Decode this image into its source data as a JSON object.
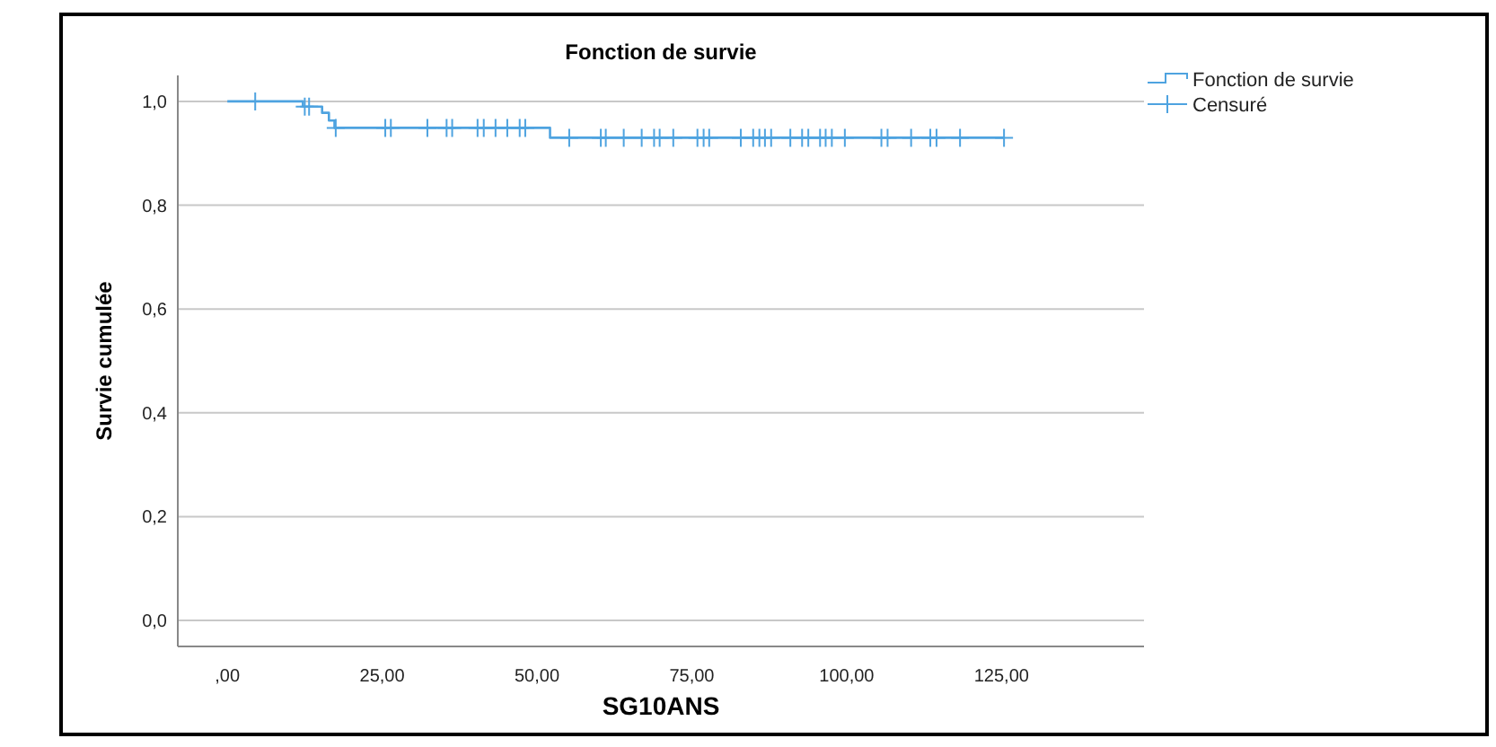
{
  "chart_data": {
    "type": "step",
    "title": "Fonction de survie",
    "xlabel": "SG10ANS",
    "ylabel": "Survie cumulée",
    "xlim": [
      -8,
      148
    ],
    "ylim": [
      -0.05,
      1.05
    ],
    "xticks": [
      {
        "value": 0,
        "label": ",00"
      },
      {
        "value": 25,
        "label": "25,00"
      },
      {
        "value": 50,
        "label": "50,00"
      },
      {
        "value": 75,
        "label": "75,00"
      },
      {
        "value": 100,
        "label": "100,00"
      },
      {
        "value": 125,
        "label": "125,00"
      }
    ],
    "yticks": [
      {
        "value": 0,
        "label": "0,0"
      },
      {
        "value": 0.2,
        "label": "0,2"
      },
      {
        "value": 0.4,
        "label": "0,4"
      },
      {
        "value": 0.6,
        "label": "0,6"
      },
      {
        "value": 0.8,
        "label": "0,8"
      },
      {
        "value": 1,
        "label": "1,0"
      }
    ],
    "grid": "y",
    "legend": "top right",
    "series": [
      {
        "name": "Fonction de survie",
        "color": "#4ea3e0",
        "marker": "none",
        "x": [
          0,
          12.2,
          15.3,
          16.4,
          17.3,
          52.1,
          125.4
        ],
        "values": [
          1,
          0.99,
          0.978,
          0.963,
          0.949,
          0.93,
          0.93
        ]
      },
      {
        "name": "Censuré",
        "type": "scatter",
        "color": "#4ea3e0",
        "marker": "cross",
        "x": [
          4.5,
          12.5,
          13.2,
          17.5,
          25.5,
          26.4,
          32.3,
          35.4,
          36.3,
          40.4,
          41.4,
          43.3,
          45.2,
          47.2,
          48.1,
          55.2,
          60.3,
          61.1,
          64,
          66.9,
          68.9,
          69.8,
          72,
          75.9,
          76.9,
          77.8,
          82.9,
          84.9,
          85.9,
          86.8,
          87.8,
          90.9,
          92.8,
          93.8,
          95.7,
          96.6,
          97.6,
          99.7,
          105.6,
          106.6,
          110.4,
          113.5,
          114.5,
          118.3,
          125.4
        ],
        "values": [
          1,
          0.99,
          0.99,
          0.949,
          0.949,
          0.949,
          0.949,
          0.949,
          0.949,
          0.949,
          0.949,
          0.949,
          0.949,
          0.949,
          0.949,
          0.93,
          0.93,
          0.93,
          0.93,
          0.93,
          0.93,
          0.93,
          0.93,
          0.93,
          0.93,
          0.93,
          0.93,
          0.93,
          0.93,
          0.93,
          0.93,
          0.93,
          0.93,
          0.93,
          0.93,
          0.93,
          0.93,
          0.93,
          0.93,
          0.93,
          0.93,
          0.93,
          0.93,
          0.93,
          0.93
        ]
      }
    ]
  }
}
